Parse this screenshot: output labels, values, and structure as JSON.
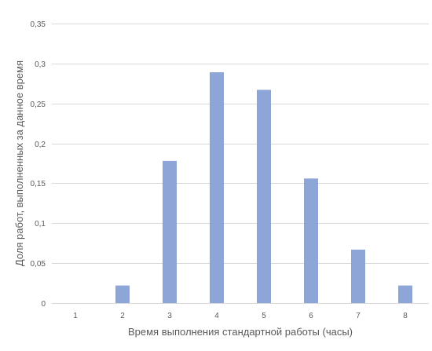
{
  "chart_data": {
    "type": "bar",
    "title": "",
    "xlabel": "Время выполнения стандартной работы (часы)",
    "ylabel": "Доля работ, выполненных за данное время",
    "categories": [
      "1",
      "2",
      "3",
      "4",
      "5",
      "6",
      "7",
      "8"
    ],
    "values": [
      0,
      0.022,
      0.178,
      0.289,
      0.267,
      0.156,
      0.067,
      0.022
    ],
    "ylim": [
      0,
      0.35
    ],
    "yticks": [
      0,
      0.05,
      0.1,
      0.15,
      0.2,
      0.25,
      0.3,
      0.35
    ],
    "ytick_labels": [
      "0",
      "0,05",
      "0,1",
      "0,15",
      "0,2",
      "0,25",
      "0,3",
      "0,35"
    ],
    "grid": true,
    "legend": "none",
    "bar_color": "#8ea5d8",
    "grid_color": "#d9d9d9",
    "text_color": "#595959"
  }
}
